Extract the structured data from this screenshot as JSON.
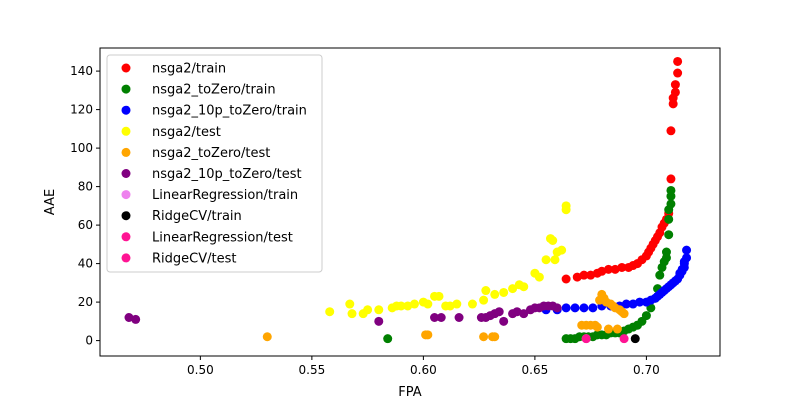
{
  "chart_data": {
    "type": "scatter",
    "title": "",
    "xlabel": "FPA",
    "ylabel": "AAE",
    "xlim": [
      0.455,
      0.733
    ],
    "ylim": [
      -8,
      152
    ],
    "xticks": [
      0.5,
      0.55,
      0.6,
      0.65,
      0.7
    ],
    "xtick_labels": [
      "0.50",
      "0.55",
      "0.60",
      "0.65",
      "0.70"
    ],
    "yticks": [
      0,
      20,
      40,
      60,
      80,
      100,
      120,
      140
    ],
    "ytick_labels": [
      "0",
      "20",
      "40",
      "60",
      "80",
      "100",
      "120",
      "140"
    ],
    "grid": false,
    "legend_position": "upper-left",
    "series": [
      {
        "name": "nsga2/train",
        "color": "#ff0000",
        "x": [
          0.664,
          0.669,
          0.672,
          0.675,
          0.678,
          0.68,
          0.683,
          0.686,
          0.689,
          0.692,
          0.694,
          0.696,
          0.698,
          0.7,
          0.701,
          0.702,
          0.703,
          0.704,
          0.705,
          0.706,
          0.707,
          0.708,
          0.709,
          0.71,
          0.711,
          0.711,
          0.712,
          0.712,
          0.713,
          0.713,
          0.714,
          0.714
        ],
        "y": [
          32,
          33,
          34,
          34,
          35,
          36,
          37,
          37,
          38,
          38,
          39,
          40,
          42,
          44,
          46,
          48,
          50,
          52,
          54,
          56,
          59,
          61,
          63,
          66,
          84,
          109,
          123,
          126,
          129,
          133,
          139,
          145
        ]
      },
      {
        "name": "nsga2_toZero/train",
        "color": "#008000",
        "x": [
          0.584,
          0.664,
          0.666,
          0.668,
          0.67,
          0.672,
          0.674,
          0.676,
          0.678,
          0.68,
          0.682,
          0.684,
          0.686,
          0.688,
          0.69,
          0.692,
          0.694,
          0.696,
          0.698,
          0.7,
          0.702,
          0.704,
          0.705,
          0.706,
          0.707,
          0.708,
          0.709,
          0.709,
          0.71,
          0.71,
          0.71,
          0.711,
          0.711,
          0.711
        ],
        "y": [
          1,
          1,
          1,
          1,
          2,
          2,
          2,
          2,
          3,
          3,
          3,
          4,
          4,
          4,
          5,
          6,
          7,
          8,
          10,
          13,
          17,
          22,
          27,
          34,
          38,
          41,
          43,
          46,
          55,
          63,
          68,
          71,
          75,
          78
        ]
      },
      {
        "name": "nsga2_10p_toZero/train",
        "color": "#0000ff",
        "x": [
          0.655,
          0.66,
          0.664,
          0.668,
          0.672,
          0.676,
          0.68,
          0.684,
          0.688,
          0.691,
          0.694,
          0.697,
          0.7,
          0.702,
          0.704,
          0.705,
          0.706,
          0.707,
          0.708,
          0.709,
          0.71,
          0.711,
          0.712,
          0.713,
          0.714,
          0.715,
          0.715,
          0.716,
          0.716,
          0.717,
          0.717,
          0.717,
          0.718,
          0.718
        ],
        "y": [
          16,
          16,
          17,
          17,
          17,
          17,
          18,
          18,
          18,
          19,
          19,
          20,
          20,
          21,
          22,
          23,
          24,
          25,
          26,
          27,
          28,
          29,
          30,
          31,
          32,
          34,
          35,
          36,
          37,
          38,
          40,
          41,
          43,
          47
        ]
      },
      {
        "name": "nsga2/test",
        "color": "#ffff00",
        "x": [
          0.558,
          0.567,
          0.568,
          0.573,
          0.575,
          0.58,
          0.586,
          0.588,
          0.59,
          0.593,
          0.596,
          0.6,
          0.602,
          0.605,
          0.607,
          0.61,
          0.612,
          0.615,
          0.622,
          0.627,
          0.628,
          0.632,
          0.636,
          0.64,
          0.643,
          0.645,
          0.65,
          0.652,
          0.655,
          0.657,
          0.658,
          0.659,
          0.66,
          0.662,
          0.664,
          0.664
        ],
        "y": [
          15,
          19,
          14,
          14,
          16,
          16,
          17,
          18,
          18,
          18,
          19,
          20,
          19,
          23,
          23,
          18,
          18,
          19,
          19,
          21,
          26,
          24,
          25,
          27,
          29,
          28,
          35,
          33,
          42,
          53,
          52,
          42,
          46,
          47,
          68,
          70
        ]
      },
      {
        "name": "nsga2_toZero/test",
        "color": "#ffa500",
        "x": [
          0.53,
          0.601,
          0.602,
          0.627,
          0.631,
          0.632,
          0.671,
          0.673,
          0.675,
          0.677,
          0.678,
          0.679,
          0.68,
          0.681,
          0.682,
          0.683,
          0.684,
          0.685,
          0.686,
          0.687,
          0.688,
          0.689,
          0.69
        ],
        "y": [
          2,
          3,
          3,
          2,
          2,
          2,
          8,
          8,
          8,
          8,
          7,
          21,
          24,
          22,
          20,
          6,
          19,
          18,
          17,
          6,
          16,
          15,
          14
        ]
      },
      {
        "name": "nsga2_10p_toZero/test",
        "color": "#800080",
        "x": [
          0.468,
          0.471,
          0.58,
          0.605,
          0.608,
          0.616,
          0.626,
          0.628,
          0.63,
          0.632,
          0.634,
          0.636,
          0.64,
          0.642,
          0.645,
          0.648,
          0.65,
          0.652,
          0.654,
          0.656,
          0.658,
          0.66
        ],
        "y": [
          12,
          11,
          10,
          12,
          12,
          12,
          12,
          12,
          13,
          14,
          15,
          10,
          14,
          15,
          14,
          16,
          17,
          17,
          18,
          18,
          18,
          17
        ]
      },
      {
        "name": "LinearRegression/train",
        "color": "#ee82ee",
        "x": [
          0.673
        ],
        "y": [
          1
        ]
      },
      {
        "name": "RidgeCV/train",
        "color": "#000000",
        "x": [
          0.695
        ],
        "y": [
          1
        ]
      },
      {
        "name": "LinearRegression/test",
        "color": "#ff1493",
        "x": [
          0.69
        ],
        "y": [
          1
        ]
      },
      {
        "name": "RidgeCV/test",
        "color": "#ff1493",
        "x": [
          0.673
        ],
        "y": [
          1
        ]
      }
    ]
  }
}
